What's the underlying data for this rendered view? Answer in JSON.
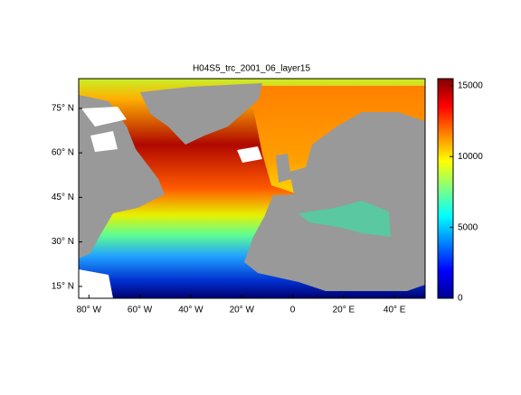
{
  "map": {
    "title": "H04S5_trc_2001_06_layer15",
    "xlim": [
      -84,
      52
    ],
    "ylim": [
      11,
      85
    ],
    "xticks": [
      {
        "value": -80,
        "label": "80° W"
      },
      {
        "value": -60,
        "label": "60° W"
      },
      {
        "value": -40,
        "label": "40° W"
      },
      {
        "value": -20,
        "label": "20° W"
      },
      0,
      {
        "value": 20,
        "label": "20° E"
      },
      {
        "value": 40,
        "label": "40° E"
      }
    ],
    "yticks": [
      {
        "value": 15,
        "label": "15° N"
      },
      {
        "value": 30,
        "label": "30° N"
      },
      {
        "value": 45,
        "label": "45° N"
      },
      {
        "value": 60,
        "label": "60° N"
      },
      {
        "value": 75,
        "label": "75° N"
      }
    ],
    "colorbar": {
      "lim": [
        0,
        15500
      ],
      "ticks": [
        0,
        5000,
        10000,
        15000
      ],
      "colormap": [
        "#00008f",
        "#0000ff",
        "#0080ff",
        "#00ffff",
        "#80ff80",
        "#ffff00",
        "#ff8000",
        "#ff0000",
        "#800000"
      ]
    }
  }
}
